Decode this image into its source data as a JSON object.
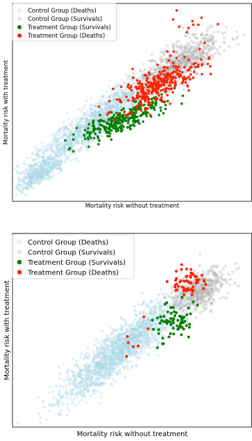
{
  "chart_data": [
    {
      "type": "scatter",
      "title": "",
      "xlabel": "Mortality risk without treatment",
      "ylabel": "Mortality risk with treatment",
      "xlim": [
        0,
        1
      ],
      "ylim": [
        0,
        1
      ],
      "xticks": [],
      "yticks": [],
      "grid": false,
      "legend_position": "top-left",
      "series": [
        {
          "name": "Control Group (Deaths)",
          "color": "#add8e6",
          "clusters": [
            {
              "n": 1400,
              "center": [
                0.34,
                0.4
              ],
              "spread_along": 0.2,
              "spread_across": 0.035,
              "angle_deg": 42
            },
            {
              "n": 350,
              "center": [
                0.12,
                0.14
              ],
              "spread_along": 0.06,
              "spread_across": 0.02,
              "angle_deg": 38
            }
          ]
        },
        {
          "name": "Control Group (Survivals)",
          "color": "#b0b0b0",
          "clusters": [
            {
              "n": 700,
              "center": [
                0.7,
                0.7
              ],
              "spread_along": 0.11,
              "spread_across": 0.04,
              "angle_deg": 40
            }
          ]
        },
        {
          "name": "Treatment Group (Survivals)",
          "color": "#008000",
          "clusters": [
            {
              "n": 260,
              "center": [
                0.47,
                0.42
              ],
              "spread_along": 0.1,
              "spread_across": 0.025,
              "angle_deg": 30
            },
            {
              "n": 20,
              "center": [
                0.35,
                0.36
              ],
              "spread_along": 0.04,
              "spread_across": 0.03,
              "angle_deg": 20
            }
          ]
        },
        {
          "name": "Treatment Group (Deaths)",
          "color": "#ff2200",
          "clusters": [
            {
              "n": 320,
              "center": [
                0.61,
                0.59
              ],
              "spread_along": 0.1,
              "spread_across": 0.04,
              "angle_deg": 35
            },
            {
              "n": 12,
              "center": [
                0.72,
                0.86
              ],
              "spread_along": 0.08,
              "spread_across": 0.04,
              "angle_deg": 60
            }
          ]
        }
      ]
    },
    {
      "type": "scatter",
      "title": "",
      "xlabel": "Mortality risk without treatment",
      "ylabel": "Mortality risk with treatment",
      "xlim": [
        0,
        1
      ],
      "ylim": [
        0,
        1
      ],
      "xticks": [],
      "yticks": [],
      "grid": false,
      "legend_position": "top-left",
      "series": [
        {
          "name": "Control Group (Deaths)",
          "color": "#add8e6",
          "clusters": [
            {
              "n": 1500,
              "center": [
                0.45,
                0.4
              ],
              "spread_along": 0.18,
              "spread_across": 0.04,
              "angle_deg": 48
            }
          ]
        },
        {
          "name": "Control Group (Survivals)",
          "color": "#b0b0b0",
          "clusters": [
            {
              "n": 450,
              "center": [
                0.78,
                0.7
              ],
              "spread_along": 0.07,
              "spread_across": 0.04,
              "angle_deg": 45
            }
          ]
        },
        {
          "name": "Treatment Group (Survivals)",
          "color": "#008000",
          "clusters": [
            {
              "n": 70,
              "center": [
                0.67,
                0.55
              ],
              "spread_along": 0.06,
              "spread_across": 0.04,
              "angle_deg": 55
            }
          ]
        },
        {
          "name": "Treatment Group (Deaths)",
          "color": "#ff2200",
          "clusters": [
            {
              "n": 55,
              "center": [
                0.73,
                0.74
              ],
              "spread_along": 0.05,
              "spread_across": 0.035,
              "angle_deg": 30
            },
            {
              "n": 8,
              "center": [
                0.55,
                0.5
              ],
              "spread_along": 0.08,
              "spread_across": 0.03,
              "angle_deg": 60
            }
          ]
        }
      ]
    }
  ]
}
